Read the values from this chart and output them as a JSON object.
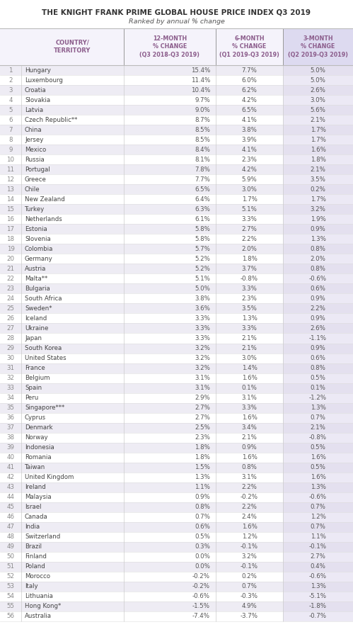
{
  "title": "THE KNIGHT FRANK PRIME GLOBAL HOUSE PRICE INDEX Q3 2019",
  "subtitle": "Ranked by annual % change",
  "rows": [
    [
      1,
      "Hungary",
      "15.4%",
      "7.7%",
      "5.0%"
    ],
    [
      2,
      "Luxembourg",
      "11.4%",
      "6.0%",
      "5.0%"
    ],
    [
      3,
      "Croatia",
      "10.4%",
      "6.2%",
      "2.6%"
    ],
    [
      4,
      "Slovakia",
      "9.7%",
      "4.2%",
      "3.0%"
    ],
    [
      5,
      "Latvia",
      "9.0%",
      "6.5%",
      "5.6%"
    ],
    [
      6,
      "Czech Republic**",
      "8.7%",
      "4.1%",
      "2.1%"
    ],
    [
      7,
      "China",
      "8.5%",
      "3.8%",
      "1.7%"
    ],
    [
      8,
      "Jersey",
      "8.5%",
      "3.9%",
      "1.7%"
    ],
    [
      9,
      "Mexico",
      "8.4%",
      "4.1%",
      "1.6%"
    ],
    [
      10,
      "Russia",
      "8.1%",
      "2.3%",
      "1.8%"
    ],
    [
      11,
      "Portugal",
      "7.8%",
      "4.2%",
      "2.1%"
    ],
    [
      12,
      "Greece",
      "7.7%",
      "5.9%",
      "3.5%"
    ],
    [
      13,
      "Chile",
      "6.5%",
      "3.0%",
      "0.2%"
    ],
    [
      14,
      "New Zealand",
      "6.4%",
      "1.7%",
      "1.7%"
    ],
    [
      15,
      "Turkey",
      "6.3%",
      "5.1%",
      "3.2%"
    ],
    [
      16,
      "Netherlands",
      "6.1%",
      "3.3%",
      "1.9%"
    ],
    [
      17,
      "Estonia",
      "5.8%",
      "2.7%",
      "0.9%"
    ],
    [
      18,
      "Slovenia",
      "5.8%",
      "2.2%",
      "1.3%"
    ],
    [
      19,
      "Colombia",
      "5.7%",
      "2.0%",
      "0.8%"
    ],
    [
      20,
      "Germany",
      "5.2%",
      "1.8%",
      "2.0%"
    ],
    [
      21,
      "Austria",
      "5.2%",
      "3.7%",
      "0.8%"
    ],
    [
      22,
      "Malta**",
      "5.1%",
      "-0.8%",
      "-0.6%"
    ],
    [
      23,
      "Bulgaria",
      "5.0%",
      "3.3%",
      "0.6%"
    ],
    [
      24,
      "South Africa",
      "3.8%",
      "2.3%",
      "0.9%"
    ],
    [
      25,
      "Sweden*",
      "3.6%",
      "3.5%",
      "2.2%"
    ],
    [
      26,
      "Iceland",
      "3.3%",
      "1.3%",
      "0.9%"
    ],
    [
      27,
      "Ukraine",
      "3.3%",
      "3.3%",
      "2.6%"
    ],
    [
      28,
      "Japan",
      "3.3%",
      "2.1%",
      "-1.1%"
    ],
    [
      29,
      "South Korea",
      "3.2%",
      "2.1%",
      "0.9%"
    ],
    [
      30,
      "United States",
      "3.2%",
      "3.0%",
      "0.6%"
    ],
    [
      31,
      "France",
      "3.2%",
      "1.4%",
      "0.8%"
    ],
    [
      32,
      "Belgium",
      "3.1%",
      "1.6%",
      "0.5%"
    ],
    [
      33,
      "Spain",
      "3.1%",
      "0.1%",
      "0.1%"
    ],
    [
      34,
      "Peru",
      "2.9%",
      "3.1%",
      "-1.2%"
    ],
    [
      35,
      "Singapore***",
      "2.7%",
      "3.3%",
      "1.3%"
    ],
    [
      36,
      "Cyprus",
      "2.7%",
      "1.6%",
      "0.7%"
    ],
    [
      37,
      "Denmark",
      "2.5%",
      "3.4%",
      "2.1%"
    ],
    [
      38,
      "Norway",
      "2.3%",
      "2.1%",
      "-0.8%"
    ],
    [
      39,
      "Indonesia",
      "1.8%",
      "0.9%",
      "0.5%"
    ],
    [
      40,
      "Romania",
      "1.8%",
      "1.6%",
      "1.6%"
    ],
    [
      41,
      "Taiwan",
      "1.5%",
      "0.8%",
      "0.5%"
    ],
    [
      42,
      "United Kingdom",
      "1.3%",
      "3.1%",
      "1.6%"
    ],
    [
      43,
      "Ireland",
      "1.1%",
      "2.2%",
      "1.3%"
    ],
    [
      44,
      "Malaysia",
      "0.9%",
      "-0.2%",
      "-0.6%"
    ],
    [
      45,
      "Israel",
      "0.8%",
      "2.2%",
      "0.7%"
    ],
    [
      46,
      "Canada",
      "0.7%",
      "2.4%",
      "1.2%"
    ],
    [
      47,
      "India",
      "0.6%",
      "1.6%",
      "0.7%"
    ],
    [
      48,
      "Switzerland",
      "0.5%",
      "1.2%",
      "1.1%"
    ],
    [
      49,
      "Brazil",
      "0.3%",
      "-0.1%",
      "-0.1%"
    ],
    [
      50,
      "Finland",
      "0.0%",
      "3.2%",
      "2.7%"
    ],
    [
      51,
      "Poland",
      "0.0%",
      "-0.1%",
      "0.4%"
    ],
    [
      52,
      "Morocco",
      "-0.2%",
      "0.2%",
      "-0.6%"
    ],
    [
      53,
      "Italy",
      "-0.2%",
      "0.7%",
      "1.3%"
    ],
    [
      54,
      "Lithuania",
      "-0.6%",
      "-0.3%",
      "-5.1%"
    ],
    [
      55,
      "Hong Kong*",
      "-1.5%",
      "4.9%",
      "-1.8%"
    ],
    [
      56,
      "Australia",
      "-7.4%",
      "-3.7%",
      "-0.7%"
    ]
  ],
  "bg_color": "#ffffff",
  "title_color": "#333333",
  "subtitle_color": "#555555",
  "header_color": "#8b5c8b",
  "rank_color": "#888888",
  "country_color": "#444444",
  "num_color": "#555555",
  "row_even_color": "#eeecf4",
  "row_odd_color": "#ffffff",
  "last_col_even_color": "#e4e0ef",
  "last_col_odd_color": "#ece9f5",
  "header_bg_color": "#f5f3fb",
  "last_header_bg": "#dddaf0",
  "divider_color": "#bbbbbb",
  "row_divider_color": "#dddddd",
  "rank_divider_color": "#cccccc",
  "col3_divider_color": "#999999"
}
